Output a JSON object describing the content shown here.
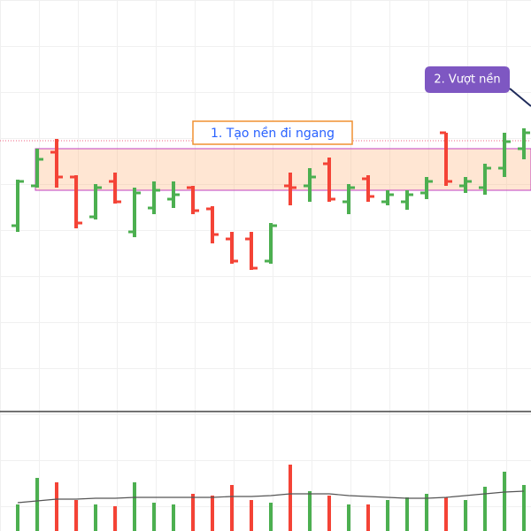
{
  "chart_data": {
    "type": "ohlc",
    "up_color": "#4caf50",
    "down_color": "#f44336",
    "open": [
      210,
      255,
      293,
      265,
      220,
      260,
      203,
      230,
      240,
      253,
      229,
      195,
      195,
      170,
      255,
      255,
      280,
      237,
      263,
      237,
      237,
      247,
      315,
      255,
      253,
      275,
      297
    ],
    "high": [
      262,
      297,
      308,
      267,
      257,
      270,
      253,
      260,
      260,
      255,
      232,
      203,
      203,
      213,
      270,
      275,
      287,
      257,
      267,
      250,
      250,
      265,
      315,
      265,
      280,
      315,
      320
    ],
    "low": [
      203,
      253,
      253,
      207,
      217,
      235,
      197,
      223,
      230,
      223,
      190,
      167,
      160,
      167,
      233,
      237,
      237,
      223,
      237,
      233,
      228,
      240,
      255,
      247,
      245,
      265,
      285
    ],
    "close": [
      260,
      285,
      265,
      213,
      253,
      237,
      247,
      250,
      245,
      227,
      200,
      170,
      162,
      210,
      253,
      265,
      240,
      253,
      243,
      245,
      245,
      260,
      260,
      260,
      275,
      305,
      315
    ],
    "ylim": [
      0,
      465
    ],
    "volume": [
      30,
      60,
      55,
      35,
      30,
      28,
      55,
      32,
      30,
      42,
      40,
      52,
      35,
      32,
      75,
      45,
      40,
      30,
      30,
      35,
      38,
      42,
      38,
      35,
      50,
      67,
      52
    ],
    "volume_ma": [
      32,
      34,
      36,
      36,
      37,
      37,
      38,
      38,
      38,
      38,
      38,
      39,
      39,
      40,
      42,
      42,
      42,
      40,
      39,
      38,
      37,
      37,
      38,
      40,
      42,
      44,
      45
    ],
    "volume_ylim": [
      0,
      135
    ],
    "zone": [
      250,
      297
    ],
    "zone_start": 1,
    "ref_line": 306,
    "annotations": [
      "1. Tạo nền đi ngang",
      "2. Vượt nền"
    ]
  }
}
